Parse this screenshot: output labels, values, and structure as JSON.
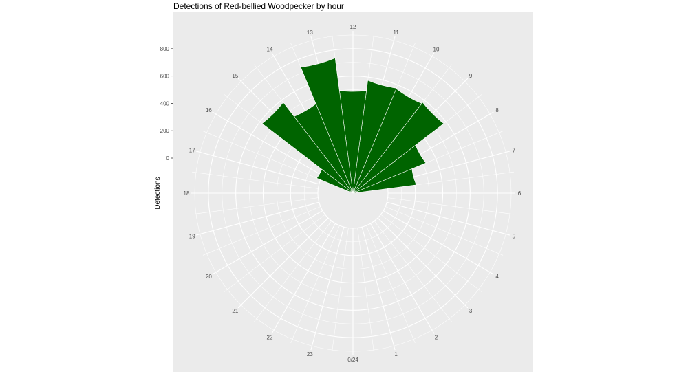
{
  "chart_data": {
    "type": "bar",
    "coord": "polar",
    "title": "Detections of Red-bellied Woodpecker by hour",
    "ylabel": "Detections",
    "xlabel": "",
    "angle_labels": [
      "0/24",
      "1",
      "2",
      "3",
      "4",
      "5",
      "6",
      "7",
      "8",
      "9",
      "10",
      "11",
      "12",
      "13",
      "14",
      "15",
      "16",
      "17",
      "18",
      "19",
      "20",
      "21",
      "22",
      "23"
    ],
    "x": [
      0,
      1,
      2,
      3,
      4,
      5,
      6,
      7,
      8,
      9,
      10,
      11,
      12,
      13,
      14,
      15,
      16,
      17,
      18,
      19,
      20,
      21,
      22,
      23
    ],
    "values": [
      0,
      0,
      0,
      0,
      0,
      0,
      0,
      210,
      320,
      580,
      570,
      575,
      500,
      740,
      450,
      580,
      30,
      0,
      0,
      0,
      0,
      0,
      0,
      0
    ],
    "y_ticks": [
      0,
      200,
      400,
      600,
      800
    ],
    "y_tick_labels": [
      "0",
      "200",
      "400",
      "600",
      "800"
    ],
    "ylim": [
      -200,
      930
    ],
    "bar_color": "#006400",
    "panel_color": "#EBEBEB",
    "grid": true
  }
}
